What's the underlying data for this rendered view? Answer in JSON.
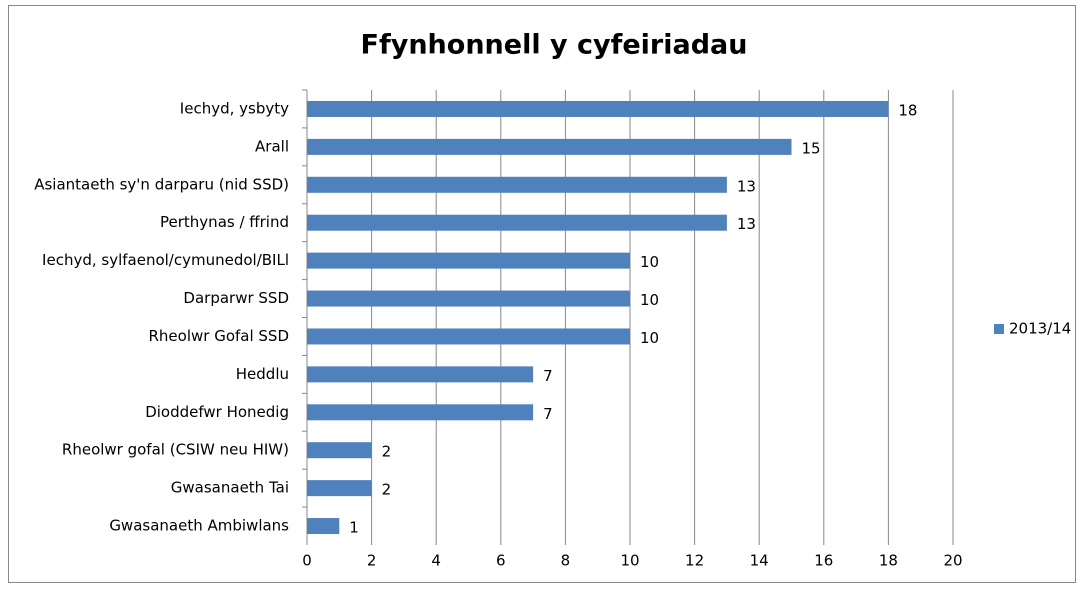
{
  "chart_data": {
    "type": "bar",
    "orientation": "horizontal",
    "title": "Ffynhonnell y cyfeiriadau",
    "categories": [
      "Iechyd, ysbyty",
      "Arall",
      "Asiantaeth sy'n darparu (nid SSD)",
      "Perthynas / ffrind",
      "Iechyd, sylfaenol/cymunedol/BILl",
      "Darparwr SSD",
      "Rheolwr Gofal SSD",
      "Heddlu",
      "Dioddefwr Honedig",
      "Rheolwr gofal (CSIW neu HIW)",
      "Gwasanaeth Tai",
      "Gwasanaeth Ambiwlans"
    ],
    "series": [
      {
        "name": "2013/14",
        "color": "#4f81bd",
        "values": [
          18,
          15,
          13,
          13,
          10,
          10,
          10,
          7,
          7,
          2,
          2,
          1
        ]
      }
    ],
    "xlim": [
      0,
      20
    ],
    "xticks": [
      0,
      2,
      4,
      6,
      8,
      10,
      12,
      14,
      16,
      18,
      20
    ],
    "grid": true,
    "legend": "right"
  }
}
